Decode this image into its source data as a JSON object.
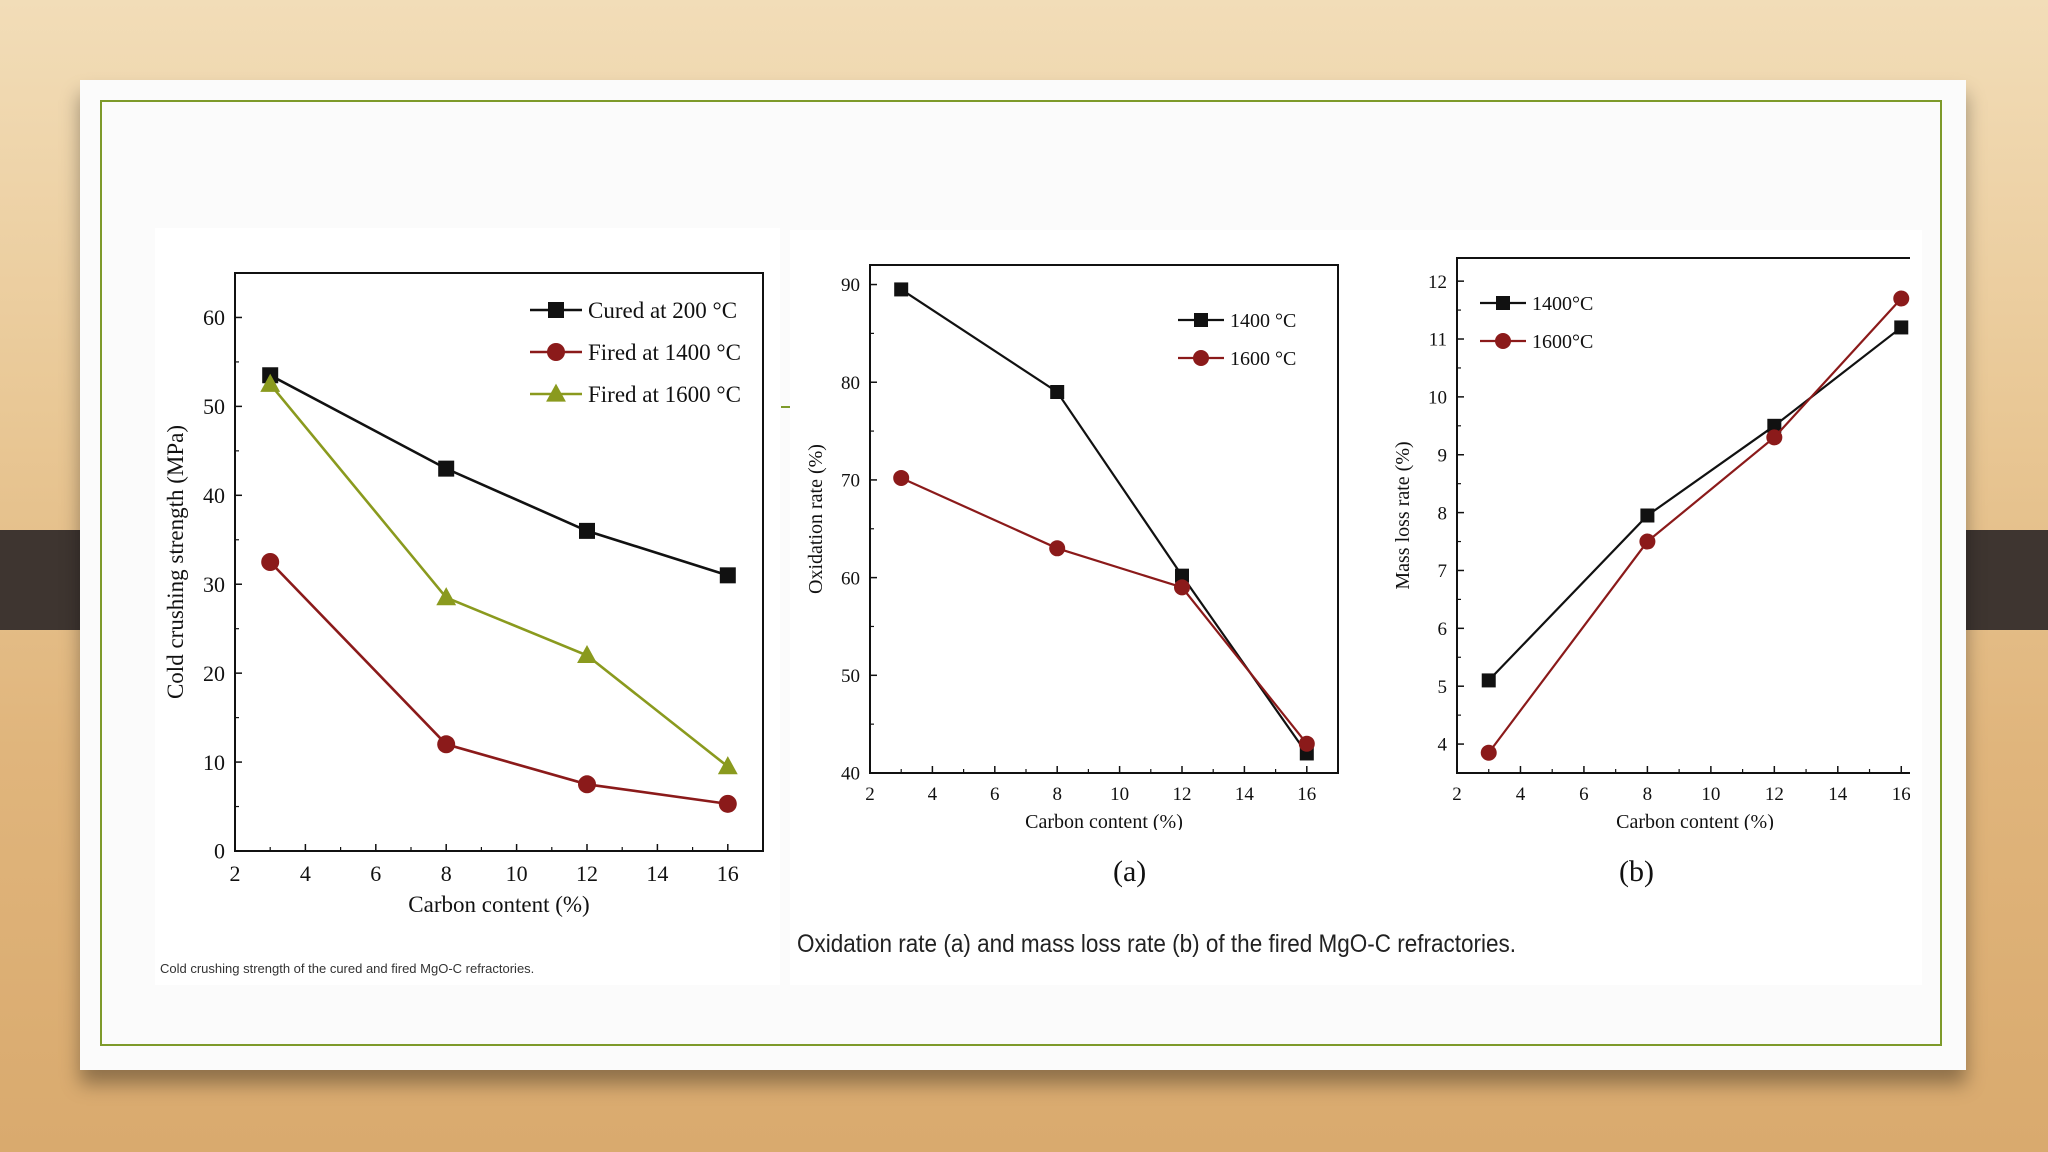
{
  "captions": {
    "left": "Cold crushing strength of the cured and fired MgO-C refractories.",
    "right": "Oxidation rate (a) and mass loss rate (b) of the fired MgO-C refractories."
  },
  "sublabels": {
    "a": "(a)",
    "b": "(b)"
  },
  "colors": {
    "black": "#111111",
    "red": "#8b1a1a",
    "olive": "#8a9a1e",
    "frame": "#7d9a2a"
  },
  "chart_data": [
    {
      "id": "ccs",
      "type": "line",
      "xlabel": "Carbon content (%)",
      "ylabel": "Cold crushing strength (MPa)",
      "xlim": [
        2,
        17
      ],
      "ylim": [
        0,
        65
      ],
      "xticks": [
        2,
        4,
        6,
        8,
        10,
        12,
        14,
        16
      ],
      "yticks": [
        0,
        10,
        20,
        30,
        40,
        50,
        60
      ],
      "x": [
        3,
        8,
        12,
        16
      ],
      "legend": "top-right",
      "series": [
        {
          "name": "Cured at 200 °C",
          "marker": "square",
          "color": "#111111",
          "values": [
            53.5,
            43,
            36,
            31
          ]
        },
        {
          "name": "Fired at 1400 °C",
          "marker": "circle",
          "color": "#8b1a1a",
          "values": [
            32.5,
            12,
            7.5,
            5.3
          ]
        },
        {
          "name": "Fired at 1600 °C",
          "marker": "triangle",
          "color": "#8a9a1e",
          "values": [
            52.5,
            28.5,
            22,
            9.5
          ]
        }
      ]
    },
    {
      "id": "oxidation",
      "type": "line",
      "xlabel": "Carbon content (%)",
      "ylabel": "Oxidation rate (%)",
      "xlim": [
        2,
        17
      ],
      "ylim": [
        40,
        92
      ],
      "xticks": [
        2,
        4,
        6,
        8,
        10,
        12,
        14,
        16
      ],
      "yticks": [
        40,
        50,
        60,
        70,
        80,
        90
      ],
      "x": [
        3,
        8,
        12,
        16
      ],
      "legend": "top-right",
      "series": [
        {
          "name": "1400 °C",
          "marker": "square",
          "color": "#111111",
          "values": [
            89.5,
            79,
            60.2,
            42
          ]
        },
        {
          "name": "1600 °C",
          "marker": "circle",
          "color": "#8b1a1a",
          "values": [
            70.2,
            63,
            59,
            43
          ]
        }
      ]
    },
    {
      "id": "massloss",
      "type": "line",
      "xlabel": "Carbon content (%)",
      "ylabel": "Mass loss rate (%)",
      "xlim": [
        2,
        17
      ],
      "ylim": [
        3.5,
        12.4
      ],
      "xticks": [
        2,
        4,
        6,
        8,
        10,
        12,
        14,
        16
      ],
      "yticks": [
        4,
        5,
        6,
        7,
        8,
        9,
        10,
        11,
        12
      ],
      "x": [
        3,
        8,
        12,
        16
      ],
      "legend": "top-left",
      "series": [
        {
          "name": "1400°C",
          "marker": "square",
          "color": "#111111",
          "values": [
            5.1,
            7.95,
            9.5,
            11.2
          ]
        },
        {
          "name": "1600°C",
          "marker": "circle",
          "color": "#8b1a1a",
          "values": [
            3.85,
            7.5,
            9.3,
            11.7
          ]
        }
      ]
    }
  ]
}
